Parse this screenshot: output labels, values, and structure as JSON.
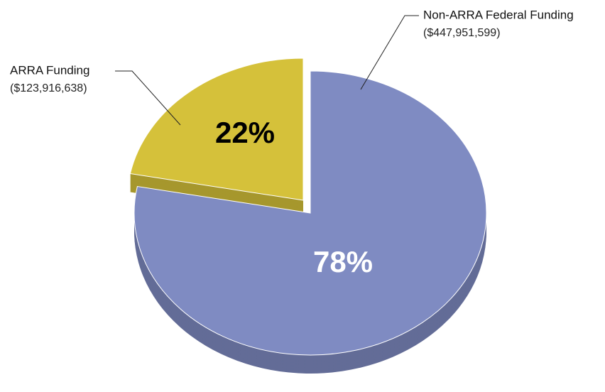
{
  "chart_data": {
    "type": "pie",
    "categories": [
      "Non-ARRA Federal Funding",
      "ARRA Funding"
    ],
    "amount_labels": [
      "($447,951,599)",
      "($123,916,638)"
    ],
    "values": [
      78,
      22
    ],
    "value_labels": [
      "78%",
      "22%"
    ],
    "colors": [
      "#7f8bc2",
      "#d5c13a"
    ]
  }
}
